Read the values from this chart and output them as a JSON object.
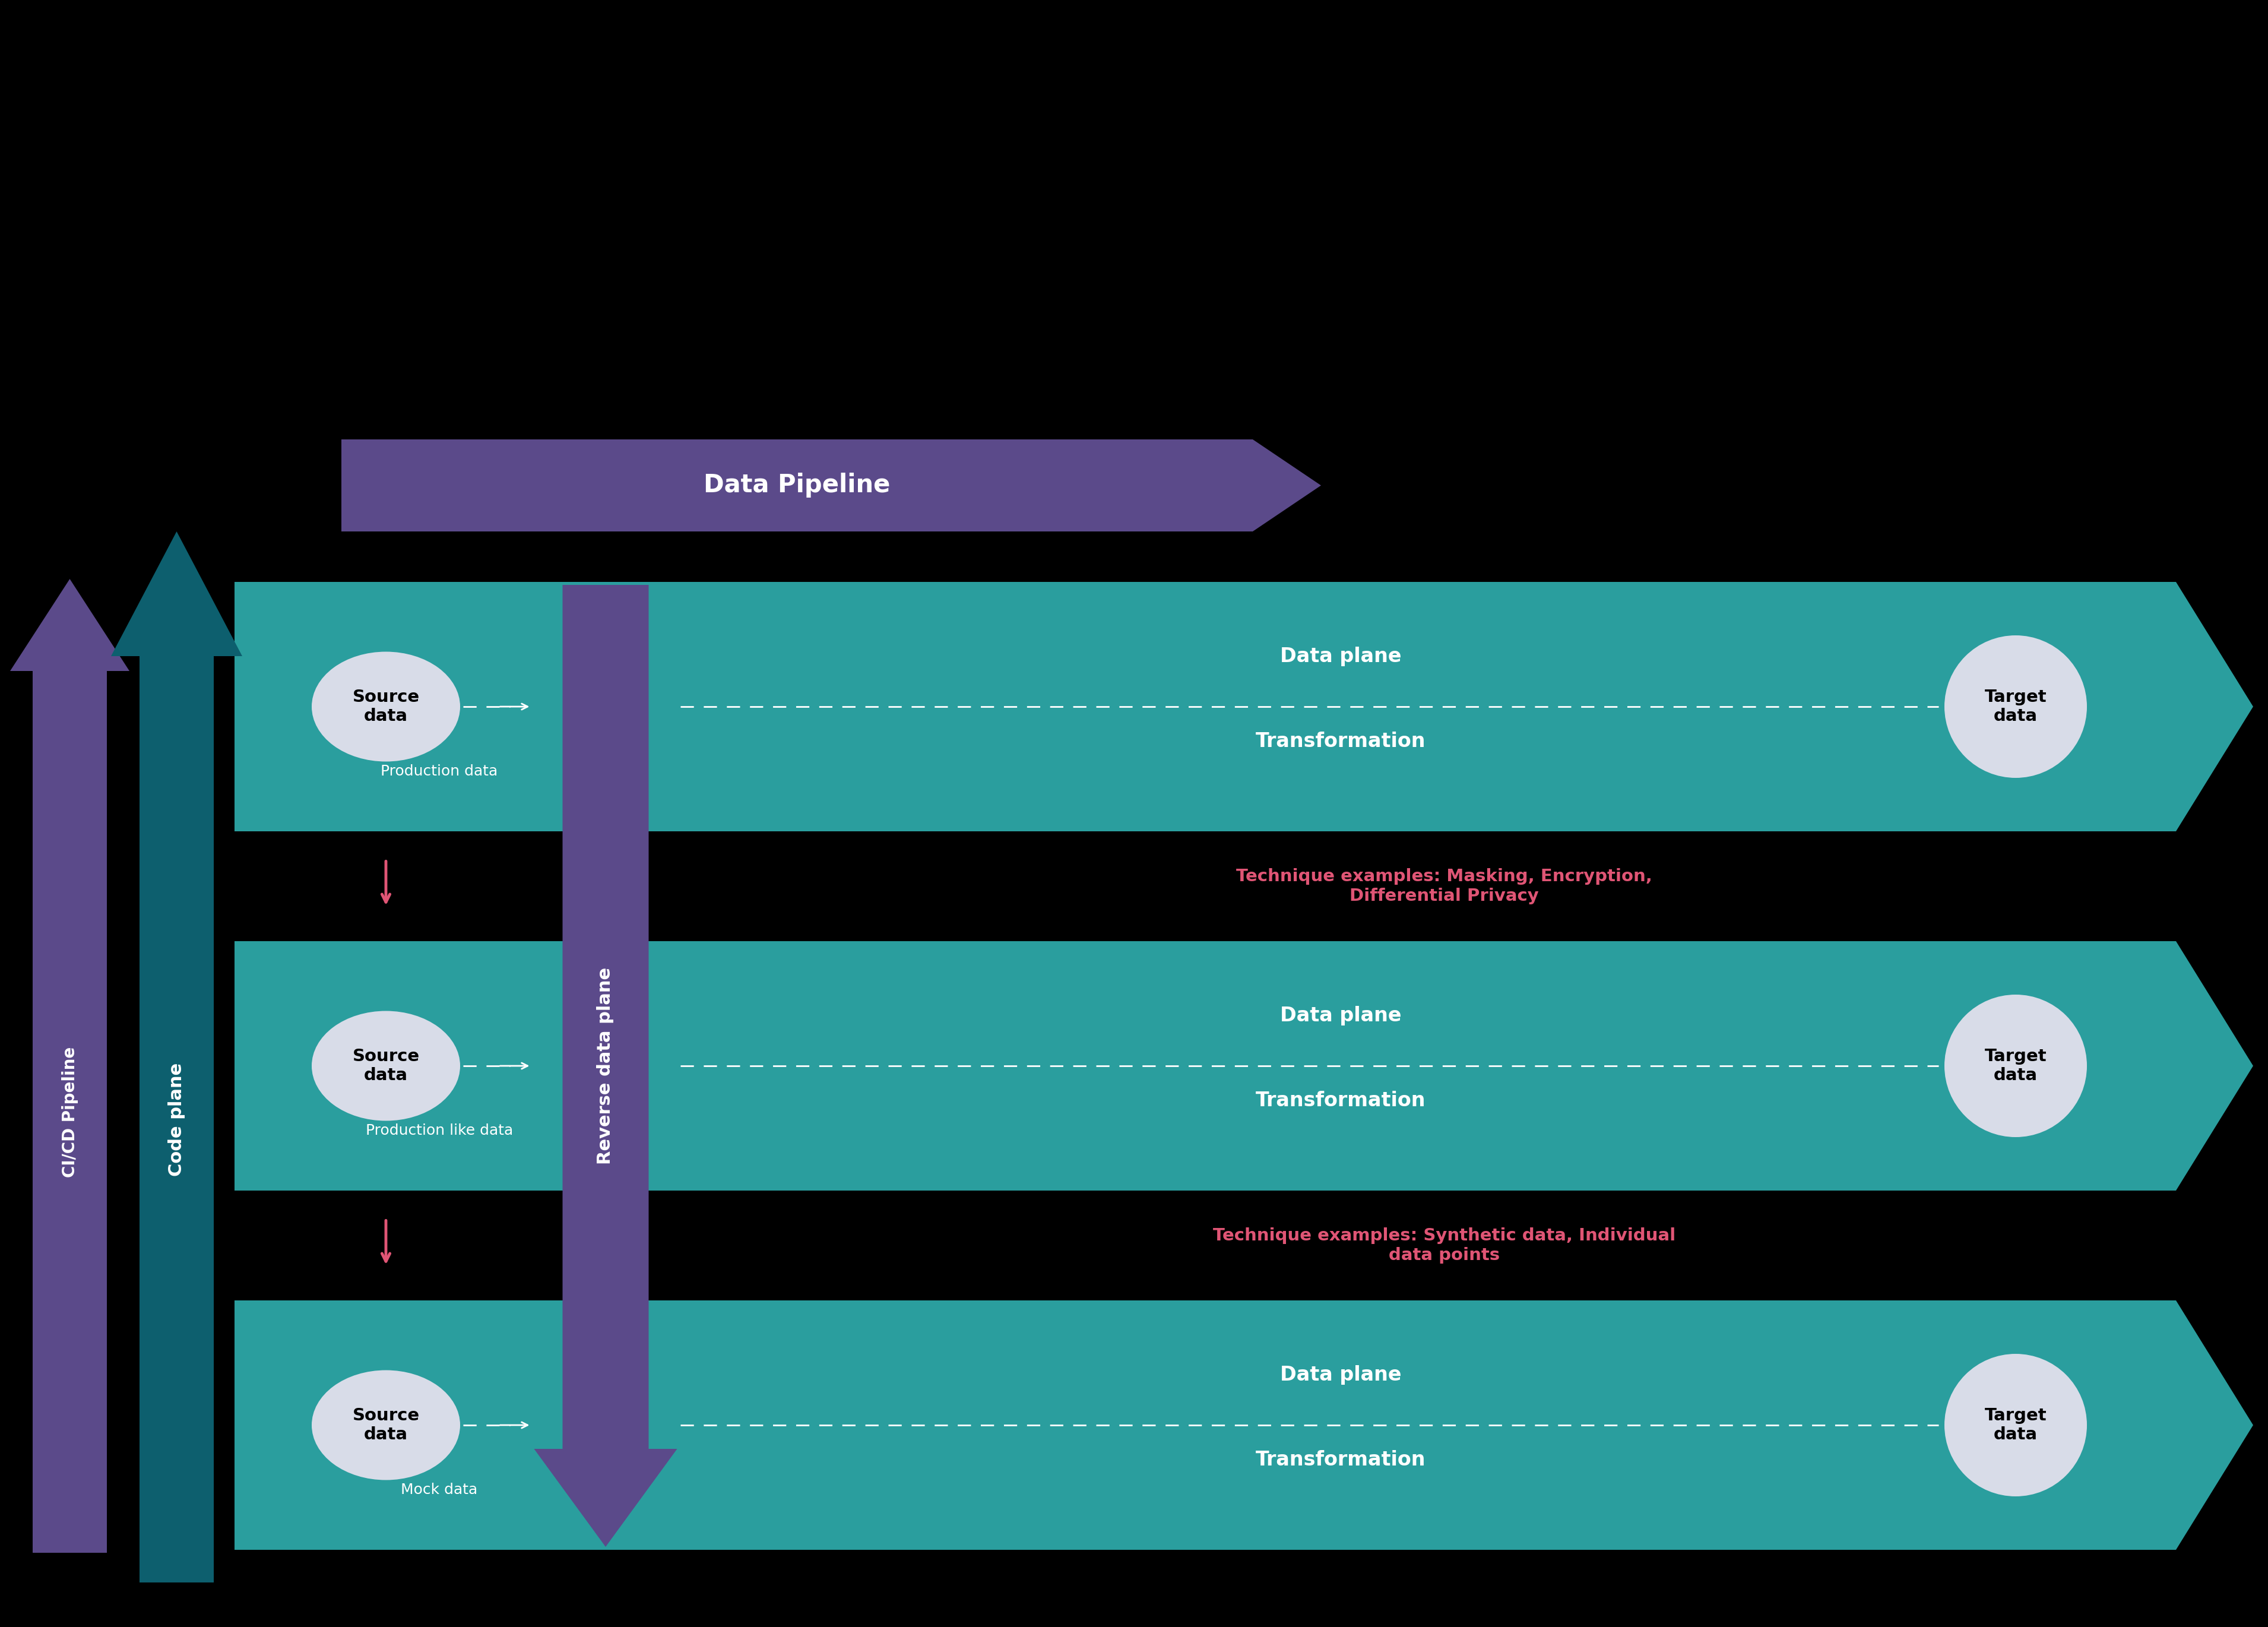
{
  "bg_color": "#000000",
  "teal_color": "#2a9e9e",
  "dark_teal_color": "#0d5f6e",
  "purple_color": "#5b4a8a",
  "pink_color": "#e05575",
  "white_color": "#ffffff",
  "ellipse_fill": "#d8dce8",
  "red_text_color": "#e05575",
  "rows": [
    {
      "data_label": "Production data",
      "technique": "Technique examples: Masking, Encryption,\nDifferential Privacy"
    },
    {
      "data_label": "Production like data",
      "technique": "Technique examples: Synthetic data, Individual\ndata points"
    },
    {
      "data_label": "Mock data",
      "technique": ""
    }
  ],
  "cicd_label": "CI/CD Pipeline",
  "code_plane_label": "Code plane",
  "reverse_data_label": "Reverse data plane",
  "data_pipeline_label": "Data Pipeline",
  "source_data_label": "Source\ndata",
  "target_data_label": "Target\ndata",
  "data_plane_label": "Data plane",
  "transformation_label": "Transformation"
}
